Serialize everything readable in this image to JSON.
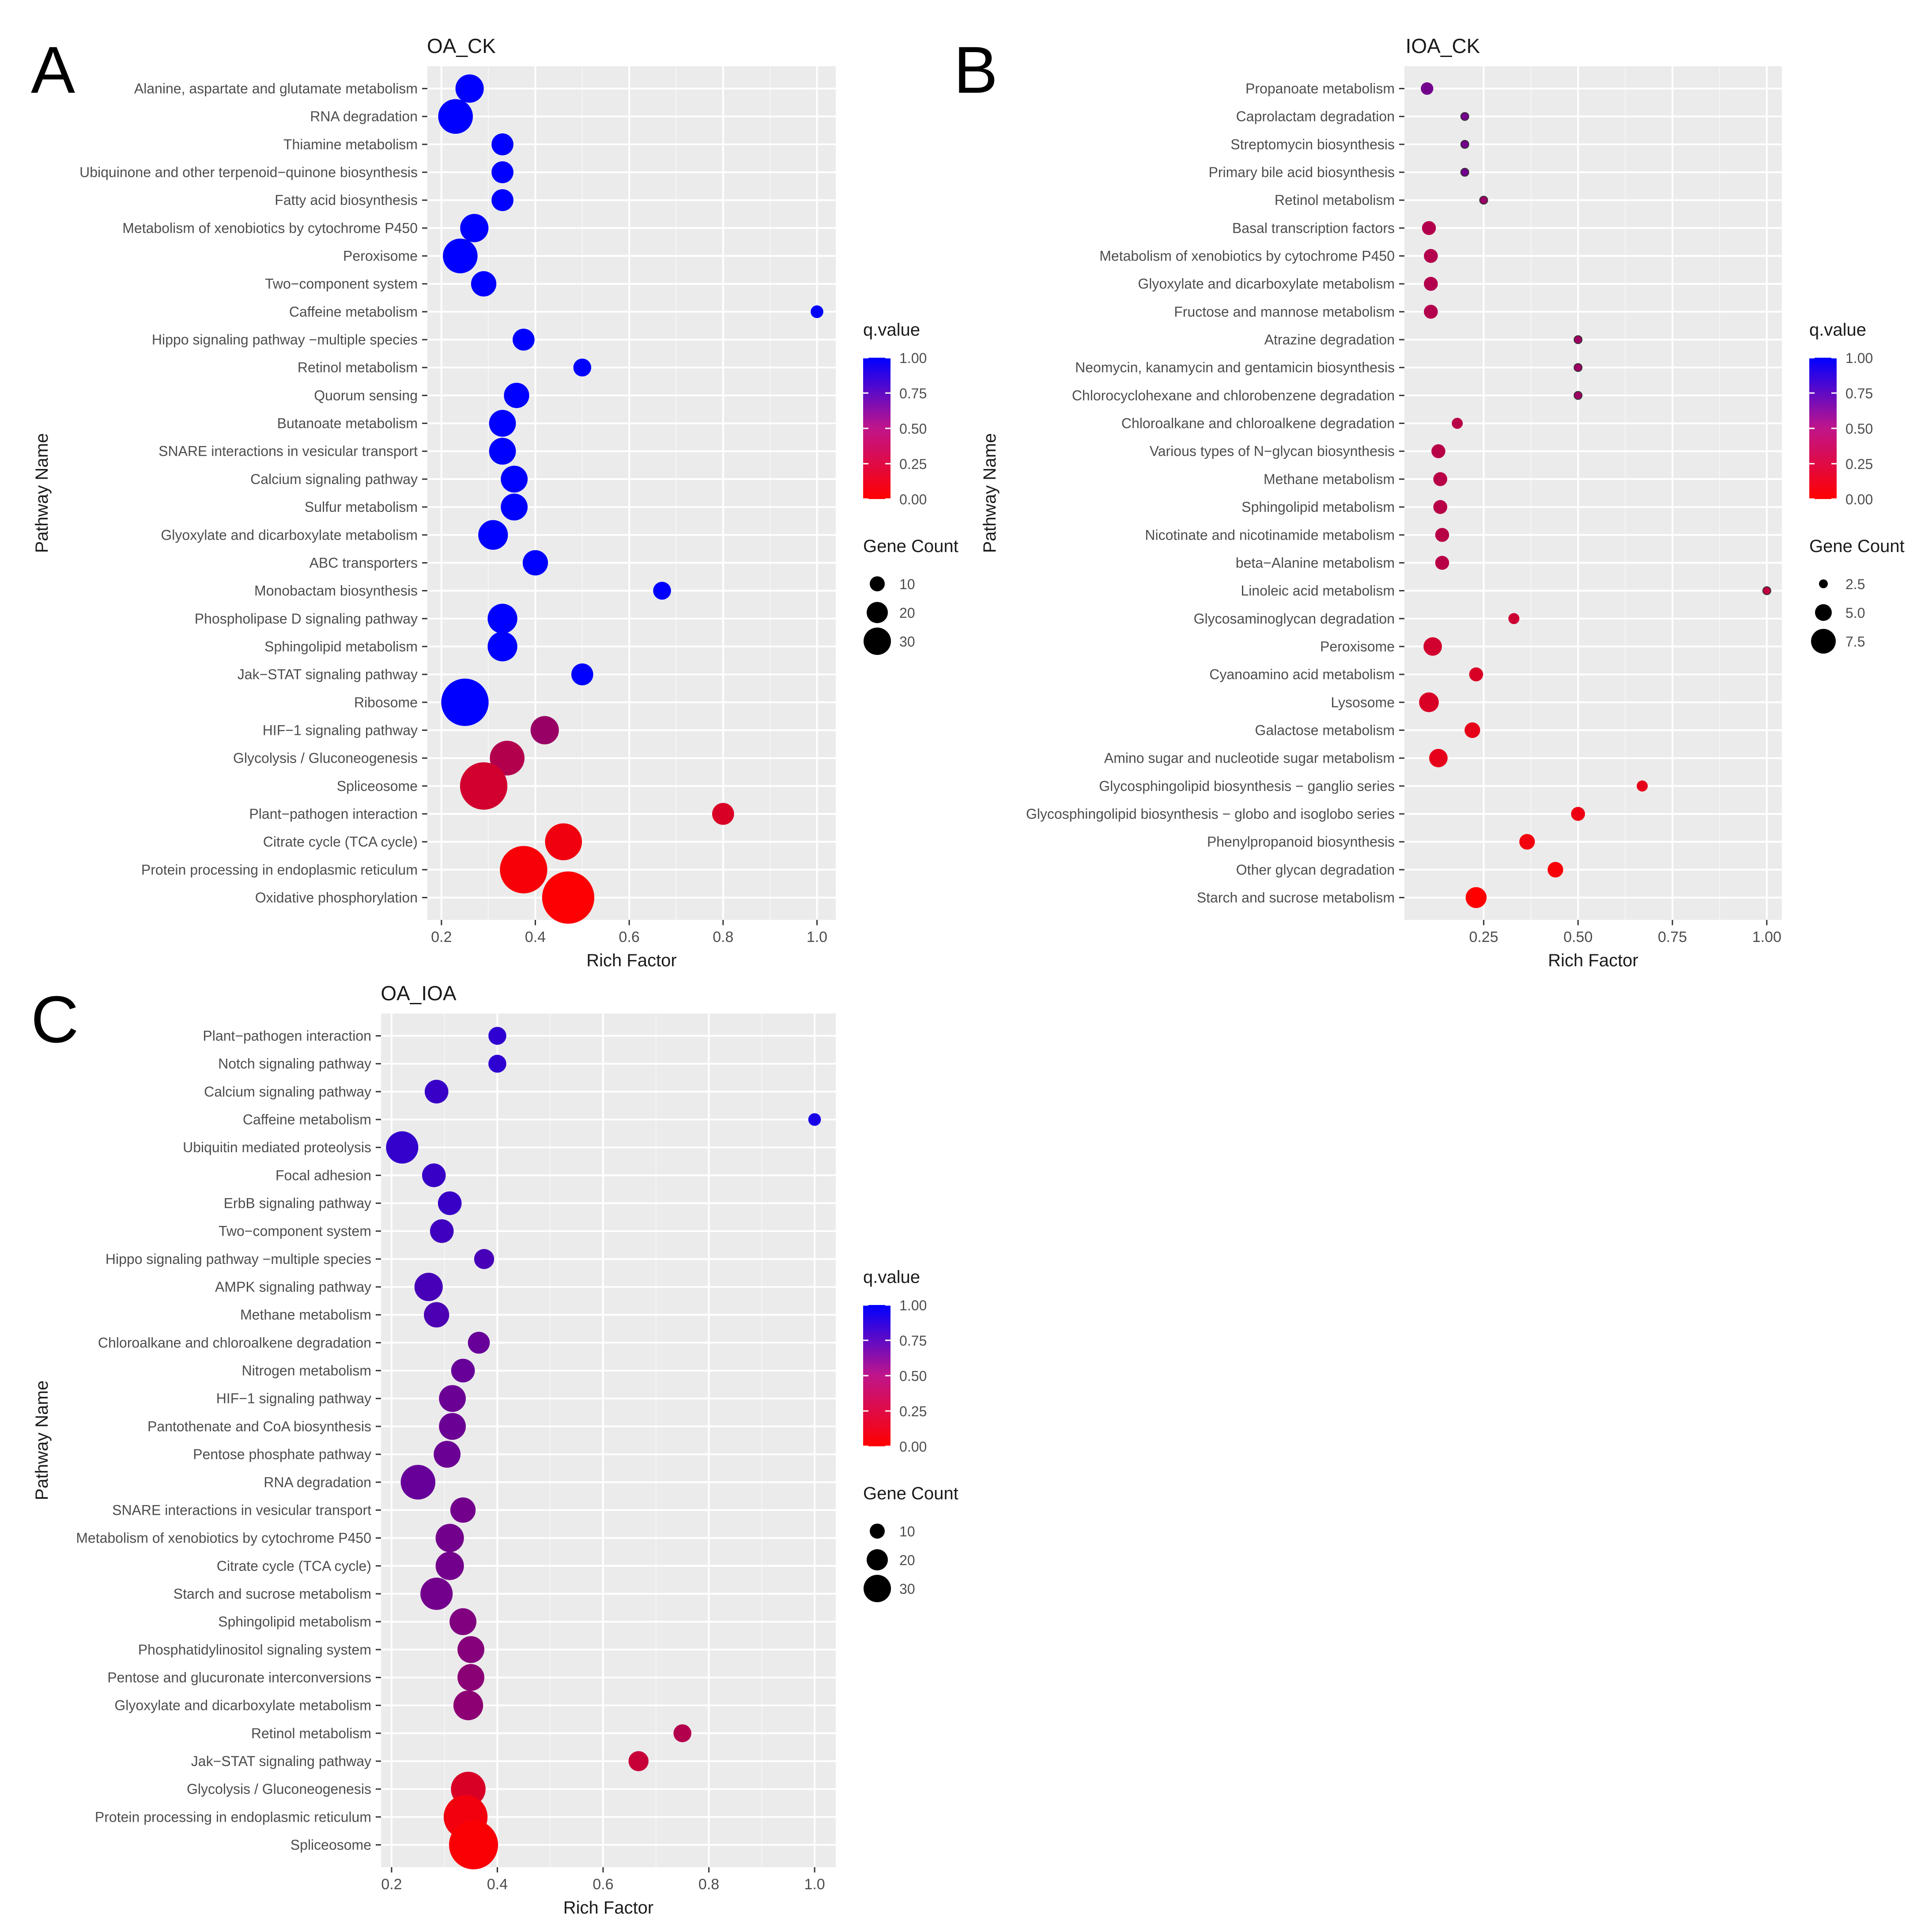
{
  "chart_data": [
    {
      "panel": "A",
      "type": "scatter",
      "title": "OA_CK",
      "xlabel": "Rich Factor",
      "ylabel": "Pathway Name",
      "xlim": [
        0.17,
        1.04
      ],
      "xticks": [
        0.2,
        0.4,
        0.6,
        0.8,
        1.0
      ],
      "xtick_labels": [
        "0.2",
        "0.4",
        "0.6",
        "0.8",
        "1.0"
      ],
      "grid": true,
      "legend_position": "right",
      "color_legend": {
        "title": "q.value",
        "ticks": [
          "1.00",
          "0.75",
          "0.50",
          "0.25",
          "0.00"
        ],
        "low_color": "#ff0000",
        "high_color": "#0000ff"
      },
      "size_legend": {
        "title": "Gene Count",
        "labels": [
          "10",
          "20",
          "30"
        ],
        "values": [
          10,
          20,
          30
        ]
      },
      "points": [
        {
          "pathway": "Alanine, aspartate and glutamate metabolism",
          "rich_factor": 0.26,
          "q_value": 1.0,
          "gene_count": 10
        },
        {
          "pathway": "RNA degradation",
          "rich_factor": 0.23,
          "q_value": 1.0,
          "gene_count": 15
        },
        {
          "pathway": "Thiamine metabolism",
          "rich_factor": 0.33,
          "q_value": 1.0,
          "gene_count": 6
        },
        {
          "pathway": "Ubiquinone and other terpenoid−quinone biosynthesis",
          "rich_factor": 0.33,
          "q_value": 1.0,
          "gene_count": 6
        },
        {
          "pathway": "Fatty acid biosynthesis",
          "rich_factor": 0.33,
          "q_value": 1.0,
          "gene_count": 6
        },
        {
          "pathway": "Metabolism of xenobiotics by cytochrome P450",
          "rich_factor": 0.27,
          "q_value": 1.0,
          "gene_count": 10
        },
        {
          "pathway": "Peroxisome",
          "rich_factor": 0.24,
          "q_value": 1.0,
          "gene_count": 15
        },
        {
          "pathway": "Two−component system",
          "rich_factor": 0.29,
          "q_value": 1.0,
          "gene_count": 8
        },
        {
          "pathway": "Caffeine metabolism",
          "rich_factor": 1.0,
          "q_value": 1.0,
          "gene_count": 2
        },
        {
          "pathway": "Hippo signaling pathway −multiple species",
          "rich_factor": 0.375,
          "q_value": 1.0,
          "gene_count": 6
        },
        {
          "pathway": "Retinol metabolism",
          "rich_factor": 0.5,
          "q_value": 1.0,
          "gene_count": 4
        },
        {
          "pathway": "Quorum sensing",
          "rich_factor": 0.36,
          "q_value": 1.0,
          "gene_count": 8
        },
        {
          "pathway": "Butanoate metabolism",
          "rich_factor": 0.33,
          "q_value": 1.0,
          "gene_count": 9
        },
        {
          "pathway": "SNARE interactions in vesicular transport",
          "rich_factor": 0.33,
          "q_value": 1.0,
          "gene_count": 9
        },
        {
          "pathway": "Calcium signaling pathway",
          "rich_factor": 0.355,
          "q_value": 1.0,
          "gene_count": 9
        },
        {
          "pathway": "Sulfur metabolism",
          "rich_factor": 0.355,
          "q_value": 1.0,
          "gene_count": 9
        },
        {
          "pathway": "Glyoxylate and dicarboxylate metabolism",
          "rich_factor": 0.31,
          "q_value": 1.0,
          "gene_count": 11
        },
        {
          "pathway": "ABC transporters",
          "rich_factor": 0.4,
          "q_value": 1.0,
          "gene_count": 8
        },
        {
          "pathway": "Monobactam biosynthesis",
          "rich_factor": 0.67,
          "q_value": 1.0,
          "gene_count": 4
        },
        {
          "pathway": "Phospholipase D signaling pathway",
          "rich_factor": 0.33,
          "q_value": 1.0,
          "gene_count": 11
        },
        {
          "pathway": "Sphingolipid metabolism",
          "rich_factor": 0.33,
          "q_value": 1.0,
          "gene_count": 11
        },
        {
          "pathway": "Jak−STAT signaling pathway",
          "rich_factor": 0.5,
          "q_value": 1.0,
          "gene_count": 6
        },
        {
          "pathway": "Ribosome",
          "rich_factor": 0.25,
          "q_value": 1.0,
          "gene_count": 28
        },
        {
          "pathway": "HIF−1 signaling pathway",
          "rich_factor": 0.42,
          "q_value": 0.4,
          "gene_count": 10
        },
        {
          "pathway": "Glycolysis / Gluconeogenesis",
          "rich_factor": 0.34,
          "q_value": 0.3,
          "gene_count": 15
        },
        {
          "pathway": "Spliceosome",
          "rich_factor": 0.29,
          "q_value": 0.18,
          "gene_count": 28
        },
        {
          "pathway": "Plant−pathogen interaction",
          "rich_factor": 0.8,
          "q_value": 0.15,
          "gene_count": 6
        },
        {
          "pathway": "Citrate cycle (TCA cycle)",
          "rich_factor": 0.46,
          "q_value": 0.06,
          "gene_count": 17
        },
        {
          "pathway": "Protein processing in endoplasmic reticulum",
          "rich_factor": 0.375,
          "q_value": 0.03,
          "gene_count": 28
        },
        {
          "pathway": "Oxidative phosphorylation",
          "rich_factor": 0.47,
          "q_value": 0.01,
          "gene_count": 34
        }
      ]
    },
    {
      "panel": "B",
      "type": "scatter",
      "title": "IOA_CK",
      "xlabel": "Rich Factor",
      "ylabel": "Pathway Name",
      "xlim": [
        0.04,
        1.04
      ],
      "xticks": [
        0.25,
        0.5,
        0.75,
        1.0
      ],
      "xtick_labels": [
        "0.25",
        "0.50",
        "0.75",
        "1.00"
      ],
      "grid": true,
      "legend_position": "right",
      "color_legend": {
        "title": "q.value",
        "ticks": [
          "1.00",
          "0.75",
          "0.50",
          "0.25",
          "0.00"
        ],
        "low_color": "#ff0000",
        "high_color": "#0000ff"
      },
      "size_legend": {
        "title": "Gene Count",
        "labels": [
          "2.5",
          "5.0",
          "7.5"
        ],
        "values": [
          2.5,
          5.0,
          7.5
        ]
      },
      "points": [
        {
          "pathway": "Propanoate metabolism",
          "rich_factor": 0.1,
          "q_value": 0.55,
          "gene_count": 3.2
        },
        {
          "pathway": "Caprolactam degradation",
          "rich_factor": 0.2,
          "q_value": 0.55,
          "gene_count": 1
        },
        {
          "pathway": "Streptomycin biosynthesis",
          "rich_factor": 0.2,
          "q_value": 0.55,
          "gene_count": 1
        },
        {
          "pathway": "Primary bile acid biosynthesis",
          "rich_factor": 0.2,
          "q_value": 0.55,
          "gene_count": 1
        },
        {
          "pathway": "Retinol metabolism",
          "rich_factor": 0.25,
          "q_value": 0.4,
          "gene_count": 1
        },
        {
          "pathway": "Basal transcription factors",
          "rich_factor": 0.105,
          "q_value": 0.3,
          "gene_count": 4
        },
        {
          "pathway": "Metabolism of xenobiotics by cytochrome P450",
          "rich_factor": 0.11,
          "q_value": 0.3,
          "gene_count": 4
        },
        {
          "pathway": "Glyoxylate and dicarboxylate metabolism",
          "rich_factor": 0.11,
          "q_value": 0.3,
          "gene_count": 4
        },
        {
          "pathway": "Fructose and mannose metabolism",
          "rich_factor": 0.11,
          "q_value": 0.3,
          "gene_count": 4
        },
        {
          "pathway": "Atrazine degradation",
          "rich_factor": 0.5,
          "q_value": 0.38,
          "gene_count": 1
        },
        {
          "pathway": "Neomycin, kanamycin and gentamicin biosynthesis",
          "rich_factor": 0.5,
          "q_value": 0.38,
          "gene_count": 1
        },
        {
          "pathway": "Chlorocyclohexane and chlorobenzene degradation",
          "rich_factor": 0.5,
          "q_value": 0.38,
          "gene_count": 1
        },
        {
          "pathway": "Chloroalkane and chloroalkene degradation",
          "rich_factor": 0.18,
          "q_value": 0.28,
          "gene_count": 2.5
        },
        {
          "pathway": "Various types of N−glycan biosynthesis",
          "rich_factor": 0.13,
          "q_value": 0.28,
          "gene_count": 4
        },
        {
          "pathway": "Methane metabolism",
          "rich_factor": 0.135,
          "q_value": 0.28,
          "gene_count": 4
        },
        {
          "pathway": "Sphingolipid metabolism",
          "rich_factor": 0.135,
          "q_value": 0.28,
          "gene_count": 4
        },
        {
          "pathway": "Nicotinate and nicotinamide metabolism",
          "rich_factor": 0.14,
          "q_value": 0.28,
          "gene_count": 4
        },
        {
          "pathway": "beta−Alanine metabolism",
          "rich_factor": 0.14,
          "q_value": 0.28,
          "gene_count": 4
        },
        {
          "pathway": "Linoleic acid metabolism",
          "rich_factor": 1.0,
          "q_value": 0.25,
          "gene_count": 1
        },
        {
          "pathway": "Glycosaminoglycan degradation",
          "rich_factor": 0.33,
          "q_value": 0.2,
          "gene_count": 2.5
        },
        {
          "pathway": "Peroxisome",
          "rich_factor": 0.115,
          "q_value": 0.18,
          "gene_count": 7
        },
        {
          "pathway": "Cyanoamino acid metabolism",
          "rich_factor": 0.23,
          "q_value": 0.15,
          "gene_count": 4
        },
        {
          "pathway": "Lysosome",
          "rich_factor": 0.105,
          "q_value": 0.15,
          "gene_count": 8
        },
        {
          "pathway": "Galactose metabolism",
          "rich_factor": 0.22,
          "q_value": 0.1,
          "gene_count": 5
        },
        {
          "pathway": "Amino sugar and nucleotide sugar metabolism",
          "rich_factor": 0.13,
          "q_value": 0.1,
          "gene_count": 7
        },
        {
          "pathway": "Glycosphingolipid biosynthesis − ganglio series",
          "rich_factor": 0.67,
          "q_value": 0.1,
          "gene_count": 2.5
        },
        {
          "pathway": "Glycosphingolipid biosynthesis − globo and isoglobo series",
          "rich_factor": 0.5,
          "q_value": 0.07,
          "gene_count": 4
        },
        {
          "pathway": "Phenylpropanoid biosynthesis",
          "rich_factor": 0.365,
          "q_value": 0.05,
          "gene_count": 5
        },
        {
          "pathway": "Other glycan degradation",
          "rich_factor": 0.44,
          "q_value": 0.03,
          "gene_count": 5
        },
        {
          "pathway": "Starch and sucrose metabolism",
          "rich_factor": 0.23,
          "q_value": 0.0,
          "gene_count": 9
        }
      ]
    },
    {
      "panel": "C",
      "type": "scatter",
      "title": "OA_IOA",
      "xlabel": "Rich Factor",
      "ylabel": "Pathway Name",
      "xlim": [
        0.18,
        1.04
      ],
      "xticks": [
        0.2,
        0.4,
        0.6,
        0.8,
        1.0
      ],
      "xtick_labels": [
        "0.2",
        "0.4",
        "0.6",
        "0.8",
        "1.0"
      ],
      "grid": true,
      "legend_position": "right",
      "color_legend": {
        "title": "q.value",
        "ticks": [
          "1.00",
          "0.75",
          "0.50",
          "0.25",
          "0.00"
        ],
        "low_color": "#ff0000",
        "high_color": "#0000ff"
      },
      "size_legend": {
        "title": "Gene Count",
        "labels": [
          "10",
          "20",
          "30"
        ],
        "values": [
          10,
          20,
          30
        ]
      },
      "points": [
        {
          "pathway": "Plant−pathogen interaction",
          "rich_factor": 0.4,
          "q_value": 0.82,
          "gene_count": 4
        },
        {
          "pathway": "Notch signaling pathway",
          "rich_factor": 0.4,
          "q_value": 0.82,
          "gene_count": 4
        },
        {
          "pathway": "Calcium signaling pathway",
          "rich_factor": 0.285,
          "q_value": 0.78,
          "gene_count": 7
        },
        {
          "pathway": "Caffeine metabolism",
          "rich_factor": 1.0,
          "q_value": 0.9,
          "gene_count": 2
        },
        {
          "pathway": "Ubiquitin mediated proteolysis",
          "rich_factor": 0.22,
          "q_value": 0.8,
          "gene_count": 13
        },
        {
          "pathway": "Focal adhesion",
          "rich_factor": 0.28,
          "q_value": 0.78,
          "gene_count": 7
        },
        {
          "pathway": "ErbB signaling pathway",
          "rich_factor": 0.31,
          "q_value": 0.78,
          "gene_count": 7
        },
        {
          "pathway": "Two−component system",
          "rich_factor": 0.295,
          "q_value": 0.75,
          "gene_count": 7
        },
        {
          "pathway": "Hippo signaling pathway −multiple species",
          "rich_factor": 0.375,
          "q_value": 0.72,
          "gene_count": 5
        },
        {
          "pathway": "AMPK signaling pathway",
          "rich_factor": 0.27,
          "q_value": 0.72,
          "gene_count": 10
        },
        {
          "pathway": "Methane metabolism",
          "rich_factor": 0.285,
          "q_value": 0.7,
          "gene_count": 8
        },
        {
          "pathway": "Chloroalkane and chloroalkene degradation",
          "rich_factor": 0.365,
          "q_value": 0.6,
          "gene_count": 6
        },
        {
          "pathway": "Nitrogen metabolism",
          "rich_factor": 0.335,
          "q_value": 0.6,
          "gene_count": 7
        },
        {
          "pathway": "HIF−1 signaling pathway",
          "rich_factor": 0.315,
          "q_value": 0.58,
          "gene_count": 9
        },
        {
          "pathway": "Pantothenate and CoA biosynthesis",
          "rich_factor": 0.315,
          "q_value": 0.58,
          "gene_count": 9
        },
        {
          "pathway": "Pentose phosphate pathway",
          "rich_factor": 0.305,
          "q_value": 0.58,
          "gene_count": 9
        },
        {
          "pathway": "RNA degradation",
          "rich_factor": 0.25,
          "q_value": 0.6,
          "gene_count": 15
        },
        {
          "pathway": "SNARE interactions in vesicular transport",
          "rich_factor": 0.335,
          "q_value": 0.55,
          "gene_count": 8
        },
        {
          "pathway": "Metabolism of xenobiotics by cytochrome P450",
          "rich_factor": 0.31,
          "q_value": 0.55,
          "gene_count": 10
        },
        {
          "pathway": "Citrate cycle (TCA cycle)",
          "rich_factor": 0.31,
          "q_value": 0.55,
          "gene_count": 10
        },
        {
          "pathway": "Starch and sucrose metabolism",
          "rich_factor": 0.285,
          "q_value": 0.55,
          "gene_count": 13
        },
        {
          "pathway": "Sphingolipid metabolism",
          "rich_factor": 0.335,
          "q_value": 0.5,
          "gene_count": 9
        },
        {
          "pathway": "Phosphatidylinositol signaling system",
          "rich_factor": 0.35,
          "q_value": 0.48,
          "gene_count": 9
        },
        {
          "pathway": "Pentose and glucuronate interconversions",
          "rich_factor": 0.35,
          "q_value": 0.46,
          "gene_count": 9
        },
        {
          "pathway": "Glyoxylate and dicarboxylate metabolism",
          "rich_factor": 0.345,
          "q_value": 0.45,
          "gene_count": 11
        },
        {
          "pathway": "Retinol metabolism",
          "rich_factor": 0.75,
          "q_value": 0.3,
          "gene_count": 4
        },
        {
          "pathway": "Jak−STAT signaling pathway",
          "rich_factor": 0.667,
          "q_value": 0.22,
          "gene_count": 5
        },
        {
          "pathway": "Glycolysis / Gluconeogenesis",
          "rich_factor": 0.345,
          "q_value": 0.15,
          "gene_count": 15
        },
        {
          "pathway": "Protein processing in endoplasmic reticulum",
          "rich_factor": 0.34,
          "q_value": 0.05,
          "gene_count": 24
        },
        {
          "pathway": "Spliceosome",
          "rich_factor": 0.355,
          "q_value": 0.02,
          "gene_count": 30
        }
      ]
    }
  ]
}
